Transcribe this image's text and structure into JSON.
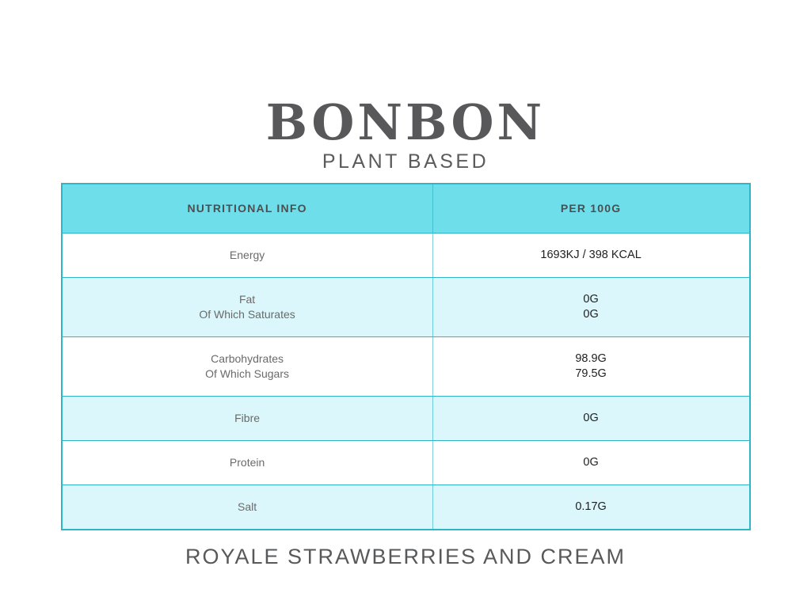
{
  "brand": {
    "logo_text": "BONBON",
    "tagline": "PLANT BASED"
  },
  "table": {
    "header": {
      "col1": "NUTRITIONAL INFO",
      "col2": "PER 100G"
    },
    "rows": [
      {
        "label": "Energy",
        "value": "1693KJ / 398 KCAL"
      },
      {
        "label": "Fat\nOf Which Saturates",
        "value": "0G\n0G"
      },
      {
        "label": "Carbohydrates\nOf Which Sugars",
        "value": "98.9G\n79.5G"
      },
      {
        "label": "Fibre",
        "value": "0G"
      },
      {
        "label": "Protein",
        "value": "0G"
      },
      {
        "label": "Salt",
        "value": "0.17G"
      }
    ]
  },
  "footer": {
    "product_name": "ROYALE STRAWBERRIES AND CREAM"
  },
  "colors": {
    "header_bg": "#6FDEEB",
    "row_alt_bg": "#DCF7FB",
    "border_teal": "#2FB5C7",
    "value_text": "#1E1E1E",
    "label_text": "#6A6A6A",
    "brand_text": "#58585A"
  }
}
